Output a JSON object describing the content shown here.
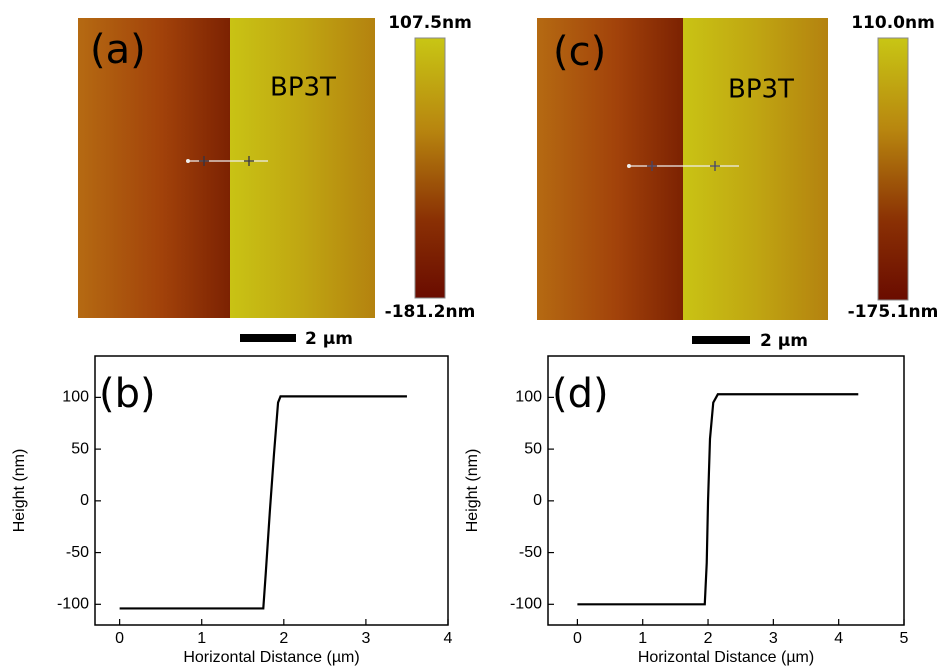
{
  "images": [
    {
      "label": "(a)",
      "sample": "BP3T",
      "colorbar_max": "107.5nm",
      "colorbar_min": "-181.2nm",
      "scale_bar": "2 µm"
    },
    {
      "label": "(c)",
      "sample": "BP3T",
      "colorbar_max": "110.0nm",
      "colorbar_min": "-175.1nm",
      "scale_bar": "2 µm"
    }
  ],
  "chart_data": [
    {
      "type": "line",
      "label": "(b)",
      "xlabel": "Horizontal Distance (µm)",
      "ylabel": "Height (nm)",
      "color": "#000000",
      "x": [
        0,
        1.75,
        1.78,
        1.83,
        1.88,
        1.93,
        1.96,
        2.5,
        3.5
      ],
      "values": [
        -104,
        -104,
        -70,
        -10,
        45,
        95,
        101,
        101,
        101
      ],
      "xlim": [
        -0.3,
        4
      ],
      "xticks": [
        0,
        1,
        2,
        3,
        4
      ],
      "ylim": [
        -120,
        140
      ],
      "yticks": [
        -100,
        -50,
        0,
        50,
        100
      ]
    },
    {
      "type": "line",
      "label": "(d)",
      "xlabel": "Horizontal Distance (µm)",
      "ylabel": "Height (nm)",
      "color": "#000000",
      "x": [
        0,
        1.95,
        1.98,
        2.0,
        2.03,
        2.08,
        2.15,
        3,
        4.3
      ],
      "values": [
        -100,
        -100,
        -60,
        0,
        60,
        95,
        103,
        103,
        103
      ],
      "xlim": [
        -0.45,
        5
      ],
      "xticks": [
        0,
        1,
        2,
        3,
        4,
        5
      ],
      "ylim": [
        -120,
        140
      ],
      "yticks": [
        -100,
        -50,
        0,
        50,
        100
      ]
    }
  ]
}
